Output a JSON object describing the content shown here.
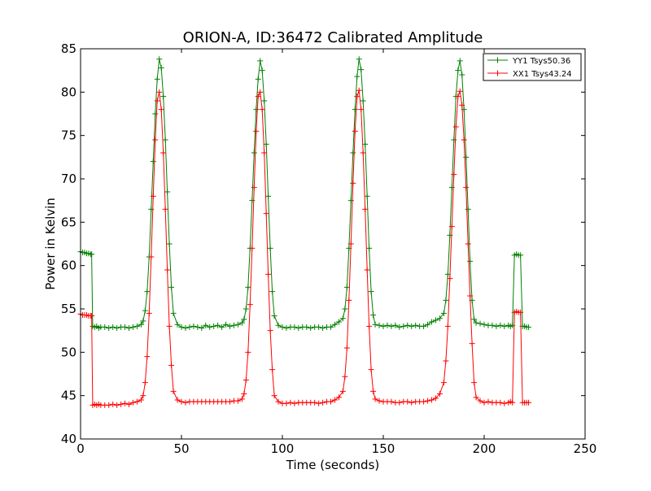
{
  "chart_data": {
    "type": "line",
    "title": "ORION-A, ID:36472 Calibrated Amplitude",
    "xlabel": "Time (seconds)",
    "ylabel": "Power in Kelvin",
    "xlim": [
      0,
      250
    ],
    "ylim": [
      40,
      85
    ],
    "xticks": [
      0,
      50,
      100,
      150,
      200,
      250
    ],
    "yticks": [
      40,
      45,
      50,
      55,
      60,
      65,
      70,
      75,
      80,
      85
    ],
    "grid": false,
    "legend_position": "top-right",
    "marker": "plus",
    "series": [
      {
        "name": "YY1 Tsys50.36",
        "color": "#008000",
        "x": [
          0,
          1,
          2,
          3,
          4,
          5,
          5.5,
          6,
          7,
          8,
          9,
          10,
          12,
          14,
          16,
          18,
          20,
          22,
          24,
          26,
          28,
          30,
          31,
          32,
          33,
          34,
          35,
          36,
          37,
          38,
          39,
          40,
          41,
          42,
          43,
          44,
          45,
          46,
          48,
          50,
          52,
          54,
          56,
          58,
          60,
          62,
          64,
          66,
          68,
          70,
          72,
          74,
          76,
          78,
          80,
          81,
          82,
          83,
          84,
          85,
          86,
          87,
          88,
          89,
          90,
          91,
          92,
          93,
          94,
          95,
          96,
          98,
          100,
          102,
          104,
          106,
          108,
          110,
          112,
          114,
          116,
          118,
          120,
          122,
          124,
          126,
          128,
          130,
          131,
          132,
          133,
          134,
          135,
          136,
          137,
          138,
          139,
          140,
          141,
          142,
          143,
          144,
          145,
          146,
          148,
          150,
          152,
          154,
          156,
          158,
          160,
          162,
          164,
          166,
          168,
          170,
          172,
          174,
          176,
          178,
          180,
          181,
          182,
          183,
          184,
          185,
          186,
          187,
          188,
          189,
          190,
          191,
          192,
          193,
          194,
          195,
          196,
          198,
          200,
          202,
          204,
          206,
          208,
          210,
          212,
          213,
          214,
          215,
          216,
          217,
          218,
          219,
          220,
          221,
          222
        ],
        "values": [
          61.6,
          61.5,
          61.5,
          61.4,
          61.4,
          61.3,
          61.3,
          53.0,
          52.9,
          53.0,
          52.8,
          52.9,
          52.9,
          52.8,
          52.9,
          52.8,
          52.9,
          52.9,
          52.8,
          52.9,
          53.0,
          53.2,
          53.6,
          54.8,
          57.0,
          61.0,
          66.5,
          72.0,
          77.5,
          81.5,
          83.8,
          82.8,
          79.5,
          74.5,
          68.5,
          62.5,
          57.5,
          54.5,
          53.2,
          52.9,
          52.8,
          52.9,
          53.0,
          52.9,
          52.8,
          53.1,
          52.9,
          53.0,
          53.1,
          52.9,
          53.2,
          53.0,
          53.1,
          53.2,
          53.4,
          53.8,
          55.0,
          57.5,
          62.0,
          67.5,
          73.0,
          78.0,
          81.5,
          83.6,
          82.5,
          79.0,
          74.0,
          68.0,
          62.0,
          57.0,
          54.2,
          53.1,
          52.9,
          52.8,
          52.9,
          52.9,
          52.8,
          52.9,
          52.9,
          52.8,
          52.9,
          52.9,
          52.8,
          52.9,
          52.9,
          53.2,
          53.5,
          53.9,
          55.0,
          57.5,
          62.0,
          67.5,
          73.0,
          78.0,
          81.8,
          83.8,
          82.6,
          79.0,
          74.0,
          68.0,
          62.0,
          57.0,
          54.3,
          53.2,
          53.1,
          53.0,
          53.1,
          53.0,
          53.1,
          52.9,
          53.0,
          53.1,
          53.0,
          53.1,
          53.0,
          53.0,
          53.2,
          53.5,
          53.7,
          53.9,
          54.5,
          56.0,
          59.0,
          63.5,
          69.0,
          74.5,
          79.5,
          82.5,
          83.6,
          82.0,
          78.0,
          72.5,
          66.5,
          60.5,
          56.0,
          53.8,
          53.4,
          53.3,
          53.2,
          53.1,
          53.1,
          53.0,
          53.1,
          53.0,
          53.1,
          53.0,
          53.1,
          61.2,
          61.3,
          61.2,
          61.2,
          53.0,
          53.0,
          52.9,
          52.9
        ]
      },
      {
        "name": "XX1 Tsys43.24",
        "color": "#ff0000",
        "x": [
          0,
          1,
          2,
          3,
          4,
          5,
          5.5,
          6,
          7,
          8,
          9,
          10,
          12,
          14,
          16,
          18,
          20,
          22,
          24,
          26,
          28,
          30,
          31,
          32,
          33,
          34,
          35,
          36,
          37,
          38,
          39,
          40,
          41,
          42,
          43,
          44,
          45,
          46,
          48,
          50,
          52,
          54,
          56,
          58,
          60,
          62,
          64,
          66,
          68,
          70,
          72,
          74,
          76,
          78,
          80,
          81,
          82,
          83,
          84,
          85,
          86,
          87,
          88,
          89,
          90,
          91,
          92,
          93,
          94,
          95,
          96,
          98,
          100,
          102,
          104,
          106,
          108,
          110,
          112,
          114,
          116,
          118,
          120,
          122,
          124,
          126,
          128,
          130,
          131,
          132,
          133,
          134,
          135,
          136,
          137,
          138,
          139,
          140,
          141,
          142,
          143,
          144,
          145,
          146,
          148,
          150,
          152,
          154,
          156,
          158,
          160,
          162,
          164,
          166,
          168,
          170,
          172,
          174,
          176,
          178,
          180,
          181,
          182,
          183,
          184,
          185,
          186,
          187,
          188,
          189,
          190,
          191,
          192,
          193,
          194,
          195,
          196,
          198,
          200,
          202,
          204,
          206,
          208,
          210,
          212,
          213,
          214,
          215,
          216,
          217,
          218,
          219,
          220,
          221,
          222
        ],
        "values": [
          54.4,
          54.3,
          54.3,
          54.3,
          54.2,
          54.2,
          54.2,
          43.9,
          44.0,
          43.9,
          44.0,
          43.9,
          43.9,
          43.9,
          44.0,
          43.9,
          44.0,
          44.1,
          44.0,
          44.2,
          44.3,
          44.5,
          45.0,
          46.5,
          49.5,
          54.5,
          61.0,
          68.0,
          74.5,
          79.0,
          80.0,
          78.0,
          73.0,
          66.5,
          59.5,
          53.0,
          48.5,
          45.5,
          44.5,
          44.3,
          44.2,
          44.3,
          44.3,
          44.3,
          44.3,
          44.3,
          44.3,
          44.3,
          44.3,
          44.3,
          44.3,
          44.3,
          44.4,
          44.4,
          44.6,
          45.2,
          46.8,
          50.0,
          55.5,
          62.0,
          69.0,
          75.5,
          79.5,
          80.0,
          78.0,
          73.0,
          66.0,
          59.0,
          52.5,
          48.0,
          45.0,
          44.3,
          44.1,
          44.1,
          44.2,
          44.1,
          44.2,
          44.2,
          44.2,
          44.2,
          44.2,
          44.1,
          44.2,
          44.3,
          44.3,
          44.5,
          44.8,
          45.5,
          47.2,
          50.5,
          56.0,
          62.5,
          69.5,
          75.5,
          79.5,
          80.2,
          78.0,
          73.0,
          66.5,
          59.5,
          53.0,
          48.0,
          45.5,
          44.6,
          44.4,
          44.3,
          44.3,
          44.3,
          44.2,
          44.2,
          44.3,
          44.3,
          44.2,
          44.3,
          44.3,
          44.3,
          44.4,
          44.5,
          44.7,
          45.2,
          46.5,
          49.0,
          53.0,
          58.5,
          64.5,
          70.5,
          76.0,
          79.5,
          80.1,
          78.5,
          74.5,
          69.0,
          62.5,
          56.5,
          51.0,
          46.5,
          44.8,
          44.4,
          44.2,
          44.3,
          44.2,
          44.2,
          44.2,
          44.1,
          44.2,
          44.3,
          44.2,
          54.6,
          54.7,
          54.6,
          54.6,
          44.2,
          44.2,
          44.2,
          44.2
        ]
      }
    ]
  }
}
